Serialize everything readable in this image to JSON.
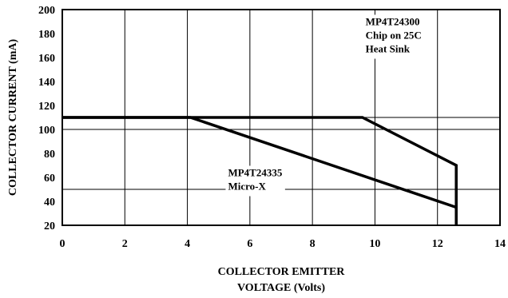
{
  "chart_data": {
    "type": "line",
    "xlabel_lines": [
      "COLLECTOR EMITTER",
      "VOLTAGE (Volts)"
    ],
    "ylabel": "COLLECTOR CURRENT (mA)",
    "xlim": [
      0,
      14
    ],
    "ylim": [
      20,
      200
    ],
    "x_ticks": [
      0,
      2,
      4,
      6,
      8,
      10,
      12,
      14
    ],
    "y_ticks": [
      20,
      40,
      60,
      80,
      100,
      120,
      140,
      160,
      180,
      200
    ],
    "grid": "partial",
    "grid_vertical": [
      2,
      4,
      6,
      8,
      10,
      12
    ],
    "grid_horizontal": [
      50,
      100,
      110
    ],
    "series": [
      {
        "name": "MP4T24300 Chip on 25C Heat Sink",
        "points": [
          [
            0,
            110
          ],
          [
            9.6,
            110
          ],
          [
            12.6,
            70
          ],
          [
            12.6,
            20
          ]
        ]
      },
      {
        "name": "MP4T24335 Micro-X",
        "points": [
          [
            0,
            110
          ],
          [
            4.1,
            110
          ],
          [
            12.6,
            35
          ]
        ]
      }
    ],
    "annotations": [
      {
        "lines": [
          "MP4T24300",
          "Chip on 25C",
          "Heat Sink"
        ],
        "anchor": [
          9.7,
          187
        ]
      },
      {
        "lines": [
          "MP4T24335",
          "Micro-X"
        ],
        "anchor": [
          5.3,
          61
        ]
      }
    ]
  }
}
